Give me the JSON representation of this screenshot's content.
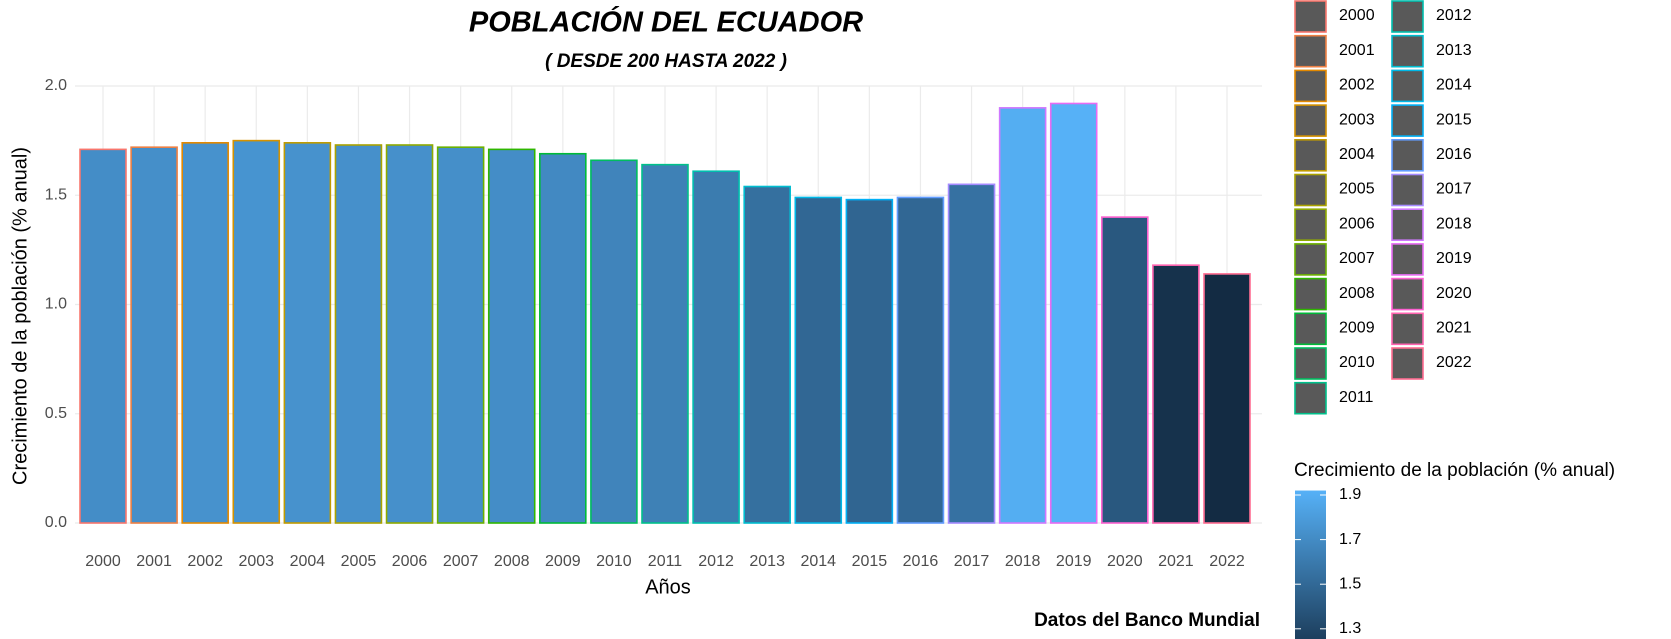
{
  "chart_data": {
    "type": "bar",
    "title": "POBLACIÓN DEL ECUADOR",
    "subtitle": "( DESDE 200 HASTA 2022 )",
    "x_label": "Años",
    "y_label": "Crecimiento de la población (% anual)",
    "caption": "Datos del Banco Mundial",
    "categories": [
      "2000",
      "2001",
      "2002",
      "2003",
      "2004",
      "2005",
      "2006",
      "2007",
      "2008",
      "2009",
      "2010",
      "2011",
      "2012",
      "2013",
      "2014",
      "2015",
      "2016",
      "2017",
      "2018",
      "2019",
      "2020",
      "2021",
      "2022"
    ],
    "values": [
      1.71,
      1.72,
      1.74,
      1.75,
      1.74,
      1.73,
      1.73,
      1.72,
      1.71,
      1.69,
      1.66,
      1.64,
      1.61,
      1.54,
      1.49,
      1.48,
      1.49,
      1.55,
      1.9,
      1.92,
      1.4,
      1.18,
      1.14
    ],
    "outline_colors": [
      "#F8766D",
      "#EE8044",
      "#E38900",
      "#D49200",
      "#C09B00",
      "#AAA200",
      "#8FAA00",
      "#6BB100",
      "#2FB600",
      "#00BA38",
      "#00BD5F",
      "#00C08B",
      "#00C0AF",
      "#00BDD0",
      "#00B8E7",
      "#00B0F6",
      "#619CFF",
      "#A58AFF",
      "#D078FF",
      "#E76BF3",
      "#FD61D1",
      "#FF64B0",
      "#FF6C91"
    ],
    "fill_gradient": [
      "#132B43",
      "#56B1F7"
    ],
    "legend_key_color": "#595959",
    "ylim": [
      0,
      2.0
    ],
    "yticks": [
      {
        "value": 0,
        "label": "0.0"
      },
      0.5,
      {
        "value": 1,
        "label": "1.0"
      },
      1.5,
      {
        "value": 2,
        "label": "2.0"
      }
    ],
    "grid": true,
    "legend_title": "Crecimiento de la población (% anual)",
    "colorbar_ticks": [
      1.3,
      1.5,
      1.7,
      1.9
    ]
  }
}
